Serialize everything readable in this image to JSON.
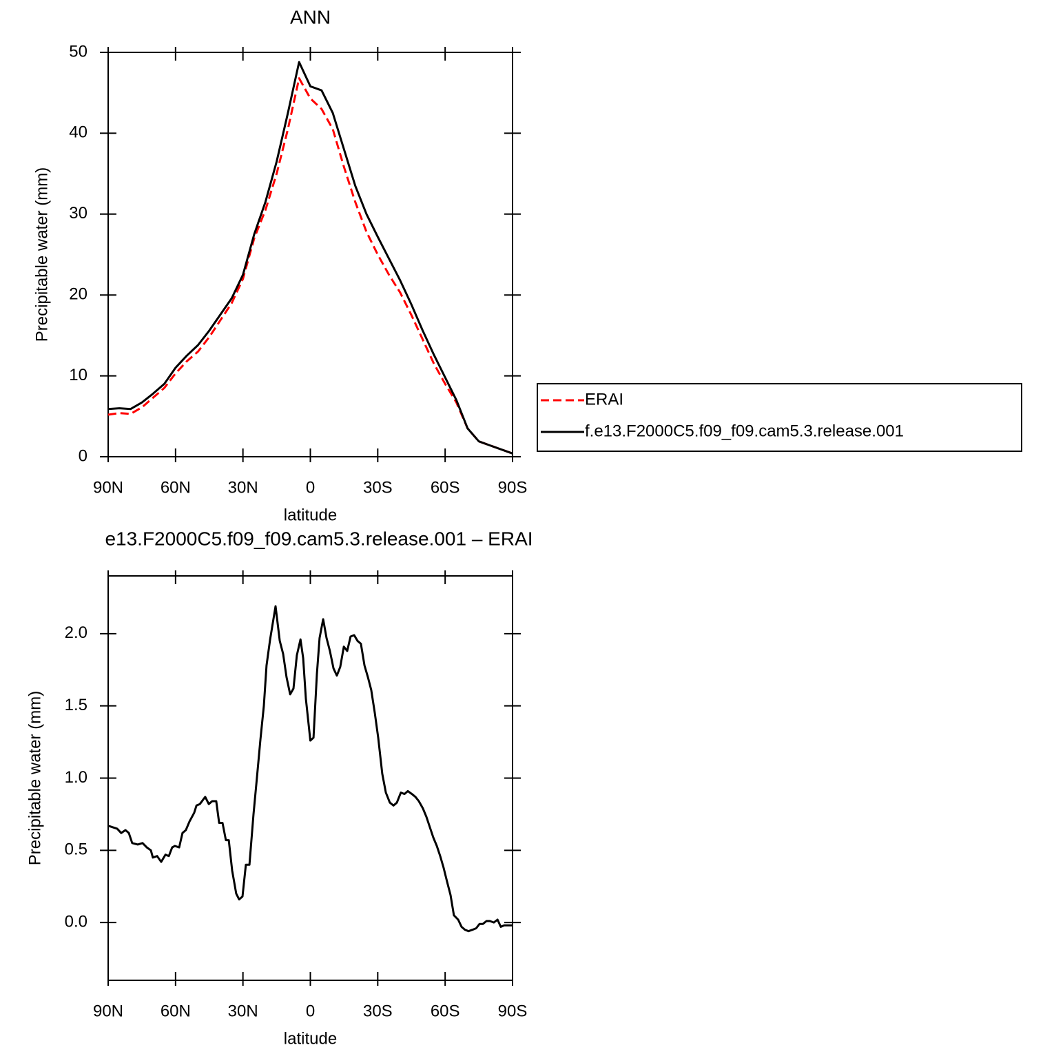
{
  "chart_data": [
    {
      "type": "line",
      "title": "ANN",
      "xlabel": "latitude",
      "ylabel": "Precipitable water (mm)",
      "x": [
        90,
        85,
        80,
        75,
        70,
        65,
        60,
        55,
        50,
        45,
        40,
        35,
        30,
        25,
        20,
        15,
        10,
        5,
        0,
        -5,
        -10,
        -15,
        -20,
        -25,
        -30,
        -35,
        -40,
        -45,
        -50,
        -55,
        -60,
        -65,
        -70,
        -75,
        -80,
        -85,
        -90
      ],
      "series": [
        {
          "name": "ERAI",
          "color": "#ff0000",
          "linestyle": "dashed",
          "values": [
            5.2,
            5.4,
            5.3,
            6.1,
            7.3,
            8.5,
            10.3,
            11.8,
            13.0,
            14.8,
            16.9,
            19.0,
            22.0,
            27.0,
            30.5,
            35.0,
            40.5,
            46.8,
            44.3,
            43.0,
            40.5,
            35.8,
            31.5,
            27.8,
            25.0,
            22.5,
            20.3,
            17.5,
            14.5,
            11.5,
            9.0,
            6.7,
            3.5,
            1.9,
            1.4,
            0.9,
            0.4
          ]
        },
        {
          "name": "f.e13.F2000C5.f09_f09.cam5.3.release.001",
          "color": "#000000",
          "linestyle": "solid",
          "values": [
            5.9,
            6.0,
            5.9,
            6.7,
            7.8,
            9.0,
            11.0,
            12.5,
            13.8,
            15.6,
            17.6,
            19.6,
            22.5,
            27.5,
            31.5,
            36.5,
            42.5,
            48.8,
            45.8,
            45.3,
            42.5,
            38.0,
            33.5,
            30.0,
            27.2,
            24.5,
            21.8,
            18.8,
            15.6,
            12.6,
            9.8,
            7.0,
            3.5,
            1.9,
            1.4,
            0.9,
            0.4
          ]
        }
      ],
      "xlim": [
        90,
        -90
      ],
      "xticks": [
        {
          "value": 90,
          "label": "90N"
        },
        {
          "value": 60,
          "label": "60N"
        },
        {
          "value": 30,
          "label": "30N"
        },
        0,
        {
          "value": -30,
          "label": "30S"
        },
        {
          "value": -60,
          "label": "60S"
        },
        {
          "value": -90,
          "label": "90S"
        }
      ],
      "ylim": [
        0,
        50
      ],
      "yticks": [
        0,
        10,
        20,
        30,
        40,
        50
      ],
      "legend": "right"
    },
    {
      "type": "line",
      "title": "e13.F2000C5.f09_f09.cam5.3.release.001 – ERAI",
      "xlabel": "latitude",
      "ylabel": "Precipitable water (mm)",
      "x": [
        90,
        86,
        84.2,
        82.3,
        80.8,
        79.3,
        76.8,
        74.7,
        72.8,
        71,
        70.1,
        68.2,
        66.4,
        64.5,
        63,
        61.5,
        60.3,
        58.4,
        56.9,
        55.4,
        53.8,
        51.7,
        50.7,
        49.2,
        46.8,
        45.2,
        43.7,
        41.9,
        40.6,
        39.1,
        37.6,
        36.3,
        34.8,
        33,
        31.7,
        30.2,
        28.7,
        27.1,
        25.3,
        23.8,
        22.2,
        20.7,
        19.5,
        17.9,
        15.5,
        13.6,
        12.1,
        10.6,
        9,
        7.5,
        6,
        4.4,
        3.2,
        2,
        0,
        -1.4,
        -2.9,
        -4.1,
        -5.7,
        -7.2,
        -8.7,
        -10.3,
        -11.8,
        -13.3,
        -14.9,
        -16.4,
        -17.9,
        -19.5,
        -21,
        -22.5,
        -24.1,
        -25.6,
        -27.1,
        -28.7,
        -30.2,
        -32,
        -33.6,
        -35.4,
        -37,
        -38.5,
        -40.3,
        -41.9,
        -43.4,
        -45.2,
        -46.8,
        -48.3,
        -50.1,
        -51.7,
        -53.2,
        -54.7,
        -56.3,
        -57.8,
        -59.3,
        -60.9,
        -62.4,
        -63.9,
        -65.8,
        -67.3,
        -68.8,
        -70.4,
        -72.2,
        -73.8,
        -75.3,
        -76.8,
        -78.4,
        -79.9,
        -81.7,
        -83.3,
        -84.8,
        -86.3,
        -90
      ],
      "series": [
        {
          "color": "#000000",
          "linestyle": "solid",
          "values": [
            0.67,
            0.65,
            0.62,
            0.64,
            0.62,
            0.55,
            0.54,
            0.55,
            0.52,
            0.5,
            0.45,
            0.46,
            0.42,
            0.47,
            0.46,
            0.52,
            0.53,
            0.52,
            0.62,
            0.64,
            0.7,
            0.76,
            0.81,
            0.82,
            0.87,
            0.82,
            0.84,
            0.84,
            0.69,
            0.69,
            0.57,
            0.57,
            0.36,
            0.2,
            0.16,
            0.18,
            0.4,
            0.4,
            0.75,
            1.0,
            1.27,
            1.5,
            1.78,
            1.96,
            2.19,
            1.95,
            1.86,
            1.7,
            1.58,
            1.62,
            1.85,
            1.96,
            1.83,
            1.55,
            1.26,
            1.28,
            1.72,
            1.97,
            2.1,
            1.97,
            1.88,
            1.76,
            1.71,
            1.77,
            1.91,
            1.88,
            1.98,
            1.99,
            1.95,
            1.93,
            1.78,
            1.7,
            1.61,
            1.45,
            1.28,
            1.03,
            0.9,
            0.83,
            0.81,
            0.83,
            0.9,
            0.89,
            0.91,
            0.89,
            0.87,
            0.84,
            0.79,
            0.73,
            0.66,
            0.59,
            0.53,
            0.46,
            0.38,
            0.28,
            0.19,
            0.05,
            0.02,
            -0.03,
            -0.05,
            -0.06,
            -0.05,
            -0.04,
            -0.01,
            -0.01,
            0.01,
            0.01,
            0.0,
            0.02,
            -0.03,
            -0.02,
            -0.02
          ]
        }
      ],
      "xlim": [
        90,
        -90
      ],
      "xticks": [
        {
          "value": 90,
          "label": "90N"
        },
        {
          "value": 60,
          "label": "60N"
        },
        {
          "value": 30,
          "label": "30N"
        },
        0,
        {
          "value": -30,
          "label": "30S"
        },
        {
          "value": -60,
          "label": "60S"
        },
        {
          "value": -90,
          "label": "90S"
        }
      ],
      "ylim": [
        -0.4,
        2.4
      ],
      "yticks": [
        {
          "value": 0,
          "label": "0.0"
        },
        {
          "value": 0.5,
          "label": "0.5"
        },
        {
          "value": 1,
          "label": "1.0"
        },
        {
          "value": 1.5,
          "label": "1.5"
        },
        {
          "value": 2,
          "label": "2.0"
        }
      ]
    }
  ]
}
